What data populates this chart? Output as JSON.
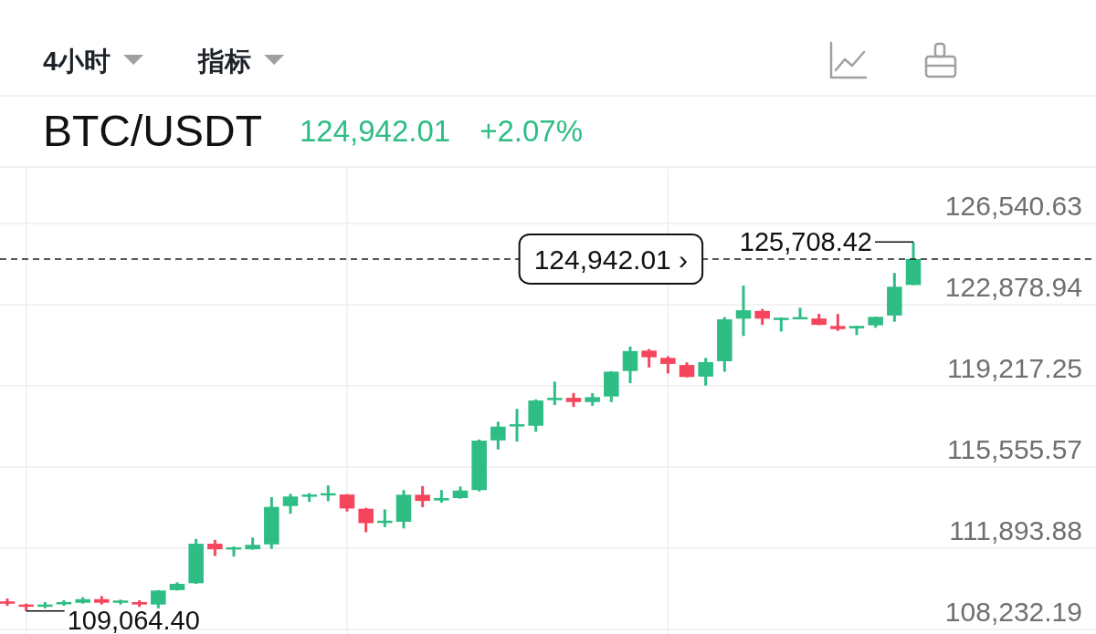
{
  "chart_data": {
    "type": "candlestick",
    "title": "BTC/USDT",
    "subtitle": "124,942.01",
    "annotations": [
      "4小时",
      "指标",
      "+2.07%",
      "125,708.42",
      "109,064.40"
    ],
    "categories": [
      null,
      null,
      null,
      null,
      null,
      null,
      null,
      null,
      null,
      null,
      null,
      null,
      null,
      null,
      null,
      null,
      null,
      null,
      null,
      null,
      null,
      null,
      null,
      null,
      null,
      null,
      null,
      null,
      null,
      null,
      null,
      null,
      null,
      null,
      null,
      null,
      null,
      null,
      null,
      null,
      null,
      null,
      null,
      null,
      null,
      null,
      null,
      null,
      null
    ],
    "ohlc": [
      [
        109500,
        109630,
        109300,
        109400
      ],
      [
        109360,
        109400,
        109064.4,
        109260
      ],
      [
        109270,
        109470,
        109190,
        109360
      ],
      [
        109370,
        109550,
        109300,
        109470
      ],
      [
        109440,
        109690,
        109400,
        109600
      ],
      [
        109600,
        109740,
        109360,
        109440
      ],
      [
        109460,
        109580,
        109360,
        109540
      ],
      [
        109470,
        109550,
        109250,
        109360
      ],
      [
        109360,
        110010,
        109190,
        109990
      ],
      [
        110010,
        110360,
        109990,
        110290
      ],
      [
        110320,
        112320,
        110290,
        112100
      ],
      [
        112100,
        112270,
        111550,
        111850
      ],
      [
        111850,
        111980,
        111520,
        111940
      ],
      [
        111850,
        112380,
        111830,
        112050
      ],
      [
        112070,
        114200,
        111870,
        113760
      ],
      [
        113800,
        114350,
        113450,
        114230
      ],
      [
        114240,
        114380,
        113990,
        114320
      ],
      [
        114320,
        114730,
        114020,
        114380
      ],
      [
        114320,
        114340,
        113550,
        113690
      ],
      [
        113680,
        113720,
        112620,
        113030
      ],
      [
        113050,
        113650,
        112850,
        113140
      ],
      [
        113090,
        114520,
        112790,
        114310
      ],
      [
        114310,
        114700,
        113750,
        114030
      ],
      [
        114050,
        114520,
        113950,
        114160
      ],
      [
        114160,
        114680,
        114130,
        114500
      ],
      [
        114520,
        116800,
        114460,
        116750
      ],
      [
        116760,
        117600,
        116350,
        117380
      ],
      [
        117410,
        118180,
        116710,
        117490
      ],
      [
        117420,
        118610,
        117150,
        118560
      ],
      [
        118590,
        119410,
        118350,
        118680
      ],
      [
        118680,
        118900,
        118270,
        118490
      ],
      [
        118490,
        118890,
        118320,
        118710
      ],
      [
        118740,
        119880,
        118490,
        119860
      ],
      [
        119890,
        120990,
        119340,
        120790
      ],
      [
        120810,
        120880,
        120050,
        120510
      ],
      [
        120480,
        120550,
        119780,
        120210
      ],
      [
        120160,
        120280,
        119600,
        119620
      ],
      [
        119640,
        120480,
        119230,
        120290
      ],
      [
        120330,
        122320,
        119860,
        122220
      ],
      [
        122250,
        123740,
        121470,
        122630
      ],
      [
        122600,
        122690,
        121970,
        122250
      ],
      [
        122220,
        122300,
        121670,
        122290
      ],
      [
        122230,
        122740,
        122220,
        122320
      ],
      [
        122260,
        122470,
        121960,
        121970
      ],
      [
        121920,
        122460,
        121700,
        121780
      ],
      [
        121810,
        121930,
        121510,
        121920
      ],
      [
        121950,
        122340,
        121840,
        122330
      ],
      [
        122390,
        124310,
        122110,
        123690
      ],
      [
        123770,
        125708.42,
        123760,
        124942.01
      ]
    ],
    "colors": [
      "#f6465d",
      "#f6465d",
      "#2ebd85",
      "#2ebd85",
      "#2ebd85",
      "#f6465d",
      "#2ebd85",
      "#f6465d",
      "#2ebd85",
      "#2ebd85",
      "#2ebd85",
      "#f6465d",
      "#2ebd85",
      "#2ebd85",
      "#2ebd85",
      "#2ebd85",
      "#2ebd85",
      "#2ebd85",
      "#f6465d",
      "#f6465d",
      "#2ebd85",
      "#2ebd85",
      "#f6465d",
      "#2ebd85",
      "#2ebd85",
      "#2ebd85",
      "#2ebd85",
      "#2ebd85",
      "#2ebd85",
      "#2ebd85",
      "#f6465d",
      "#2ebd85",
      "#2ebd85",
      "#2ebd85",
      "#f6465d",
      "#f6465d",
      "#f6465d",
      "#2ebd85",
      "#2ebd85",
      "#2ebd85",
      "#f6465d",
      "#2ebd85",
      "#2ebd85",
      "#f6465d",
      "#f6465d",
      "#2ebd85",
      "#2ebd85",
      "#2ebd85",
      "#2ebd85"
    ],
    "ylim": [
      108030,
      129010
    ],
    "yticks": [
      {
        "value": 108232.19,
        "label": "108,232.19"
      },
      {
        "value": 111893.88,
        "label": "111,893.88"
      },
      {
        "value": 115555.57,
        "label": "115,555.57"
      },
      {
        "value": 119217.25,
        "label": "119,217.25"
      },
      {
        "value": 122878.94,
        "label": "122,878.94"
      },
      {
        "value": 126540.63,
        "label": "126,540.63"
      }
    ],
    "tick_labels": "y",
    "grid": true,
    "ref_lines": [
      {
        "axis": "y",
        "value": 124942.01,
        "label": "124,942.01 ›",
        "line_style": "dashed",
        "color": "#222222"
      }
    ]
  }
}
